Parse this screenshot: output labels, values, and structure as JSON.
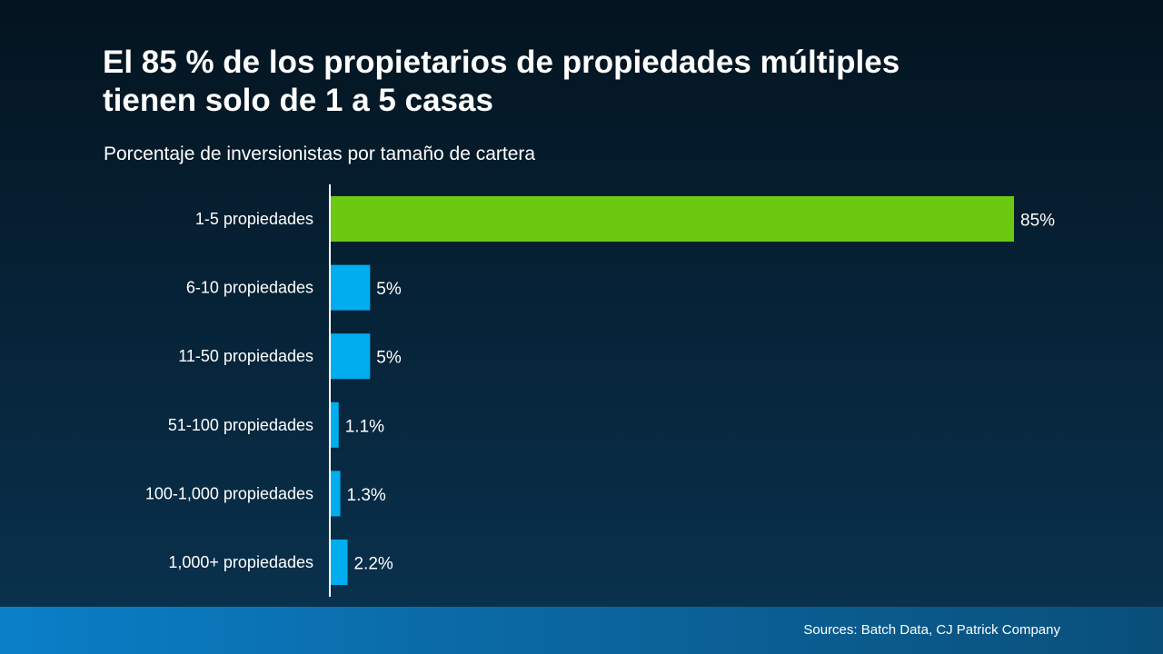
{
  "slide": {
    "title_line1": "El 85 % de los propietarios de propiedades múltiples",
    "title_line2": "tienen solo de 1 a 5 casas",
    "subtitle": "Porcentaje de inversionistas por tamaño de cartera",
    "source": "Sources: Batch Data, CJ Patrick Company"
  },
  "colors": {
    "highlight": "#6bc912",
    "bar": "#00aeef",
    "axis": "#ffffff",
    "text": "#ffffff"
  },
  "chart_data": {
    "type": "bar",
    "orientation": "horizontal",
    "categories": [
      "1-5 propiedades",
      "6-10 propiedades",
      "11-50 propiedades",
      "51-100 propiedades",
      "100-1,000 propiedades",
      "1,000+ propiedades"
    ],
    "values": [
      85,
      5,
      5,
      1.1,
      1.3,
      2.2
    ],
    "value_labels": [
      "85%",
      "5%",
      "5%",
      "1.1%",
      "1.3%",
      "2.2%"
    ],
    "title": "Porcentaje de inversionistas por tamaño de cartera",
    "xlim": [
      0,
      85
    ],
    "grid": false,
    "legend": "none"
  }
}
